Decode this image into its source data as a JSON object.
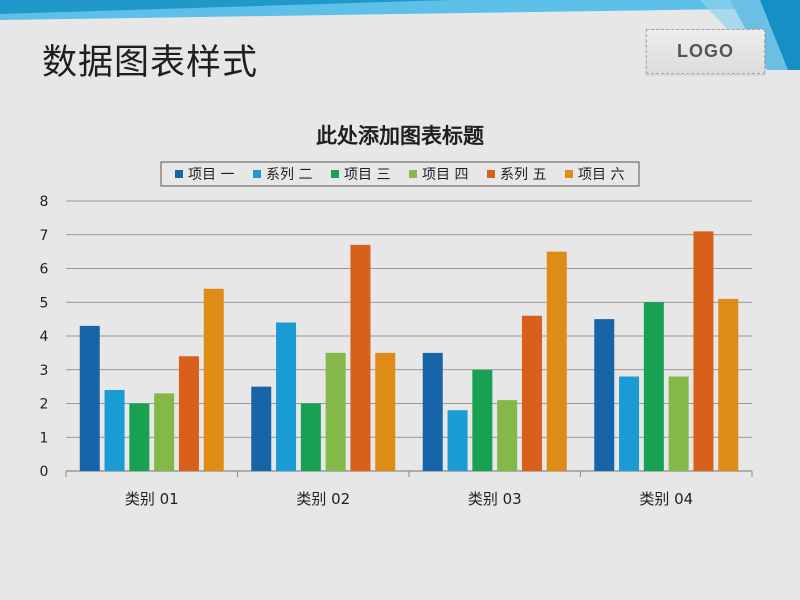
{
  "slide": {
    "title": "数据图表样式",
    "logo_text": "LOGO"
  },
  "colors": {
    "background": "#e7e7e7",
    "gridline": "#7f7f7f",
    "axis_text": "#1f1f1f",
    "band_dark": "#1590c4",
    "band_light": "#5cc0e8"
  },
  "chart_data": {
    "type": "bar",
    "title": "此处添加图表标题",
    "xlabel": "",
    "ylabel": "",
    "ylim": [
      0,
      8
    ],
    "yticks": [
      0,
      1,
      2,
      3,
      4,
      5,
      6,
      7,
      8
    ],
    "grid": true,
    "legend_position": "top",
    "categories": [
      "类别 01",
      "类别 02",
      "类别 03",
      "类别 04"
    ],
    "series": [
      {
        "name": "项目 一",
        "color": "#1565a8",
        "values": [
          4.3,
          2.5,
          3.5,
          4.5
        ]
      },
      {
        "name": "系列 二",
        "color": "#1a9bd4",
        "values": [
          2.4,
          4.4,
          1.8,
          2.8
        ]
      },
      {
        "name": "项目 三",
        "color": "#18a152",
        "values": [
          2.0,
          2.0,
          3.0,
          5.0
        ]
      },
      {
        "name": "项目 四",
        "color": "#84b94a",
        "values": [
          2.3,
          3.5,
          2.1,
          2.8
        ]
      },
      {
        "name": "系列 五",
        "color": "#d9601a",
        "values": [
          3.4,
          6.7,
          4.6,
          7.1
        ]
      },
      {
        "name": "项目 六",
        "color": "#df8c16",
        "values": [
          5.4,
          3.5,
          6.5,
          5.1
        ]
      }
    ]
  }
}
